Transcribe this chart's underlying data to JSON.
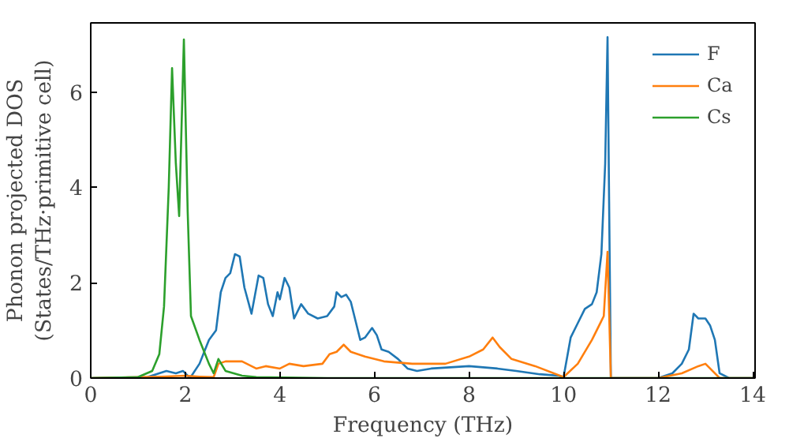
{
  "chart_data": {
    "type": "line",
    "xlabel": "Frequency (THz)",
    "ylabel": "Phonon projected DOS\n(States/THz·primitive cell)",
    "xlim": [
      0,
      14.05
    ],
    "ylim": [
      0,
      7.45
    ],
    "xticks": [
      0,
      2,
      4,
      6,
      8,
      10,
      12,
      14
    ],
    "yticks": [
      0,
      2,
      4,
      6
    ],
    "grid": false,
    "legend": "top right",
    "series": [
      {
        "name": "F",
        "color": "#1f77b4",
        "x": [
          0,
          1.2,
          1.6,
          1.8,
          1.95,
          2.05,
          2.1,
          2.3,
          2.5,
          2.65,
          2.75,
          2.85,
          2.95,
          3.05,
          3.15,
          3.25,
          3.4,
          3.55,
          3.65,
          3.75,
          3.85,
          3.95,
          4.0,
          4.1,
          4.2,
          4.3,
          4.45,
          4.6,
          4.8,
          5.0,
          5.15,
          5.2,
          5.3,
          5.4,
          5.5,
          5.6,
          5.7,
          5.8,
          5.95,
          6.05,
          6.15,
          6.3,
          6.5,
          6.7,
          6.9,
          7.2,
          8.0,
          8.6,
          9.0,
          9.5,
          9.9,
          10.0,
          10.15,
          10.3,
          10.45,
          10.6,
          10.7,
          10.8,
          10.88,
          10.93,
          10.97,
          11.0,
          12.0,
          12.3,
          12.5,
          12.65,
          12.75,
          12.85,
          13.0,
          13.1,
          13.2,
          13.3,
          13.5,
          14.0
        ],
        "values": [
          0,
          0.02,
          0.15,
          0.1,
          0.15,
          0.05,
          0,
          0.3,
          0.8,
          1.0,
          1.8,
          2.1,
          2.2,
          2.6,
          2.55,
          1.9,
          1.35,
          2.15,
          2.1,
          1.55,
          1.3,
          1.8,
          1.65,
          2.1,
          1.9,
          1.25,
          1.55,
          1.35,
          1.25,
          1.3,
          1.5,
          1.8,
          1.7,
          1.75,
          1.6,
          1.2,
          0.8,
          0.85,
          1.05,
          0.9,
          0.6,
          0.55,
          0.4,
          0.2,
          0.15,
          0.2,
          0.25,
          0.2,
          0.15,
          0.08,
          0.05,
          0.02,
          0.85,
          1.15,
          1.45,
          1.55,
          1.8,
          2.6,
          4.5,
          7.15,
          3.0,
          0,
          0,
          0.1,
          0.3,
          0.6,
          1.35,
          1.25,
          1.25,
          1.1,
          0.8,
          0.1,
          0,
          0
        ]
      },
      {
        "name": "Ca",
        "color": "#ff7f0e",
        "x": [
          0,
          1.5,
          2.0,
          2.3,
          2.6,
          2.7,
          2.85,
          3.2,
          3.4,
          3.5,
          3.7,
          4.0,
          4.2,
          4.5,
          4.9,
          5.05,
          5.2,
          5.35,
          5.5,
          5.8,
          6.0,
          6.2,
          6.8,
          7.5,
          8.0,
          8.3,
          8.5,
          8.65,
          8.9,
          9.4,
          10.0,
          10.3,
          10.6,
          10.85,
          10.93,
          11.0,
          12.0,
          12.5,
          12.85,
          13.0,
          13.3,
          14.0
        ],
        "values": [
          0,
          0.03,
          0.05,
          0.03,
          0.02,
          0.3,
          0.35,
          0.35,
          0.25,
          0.2,
          0.25,
          0.2,
          0.3,
          0.25,
          0.3,
          0.5,
          0.55,
          0.7,
          0.55,
          0.45,
          0.4,
          0.35,
          0.3,
          0.3,
          0.45,
          0.6,
          0.85,
          0.65,
          0.4,
          0.25,
          0.02,
          0.3,
          0.8,
          1.3,
          2.65,
          0,
          0,
          0.1,
          0.25,
          0.3,
          0,
          0
        ]
      },
      {
        "name": "Cs",
        "color": "#2ca02c",
        "x": [
          0,
          1.0,
          1.3,
          1.45,
          1.55,
          1.65,
          1.72,
          1.8,
          1.87,
          1.97,
          2.05,
          2.12,
          2.3,
          2.5,
          2.6,
          2.7,
          2.85,
          3.2,
          3.5,
          5.0,
          14.0
        ],
        "values": [
          0,
          0.02,
          0.15,
          0.5,
          1.5,
          4.0,
          6.5,
          4.5,
          3.4,
          7.1,
          3.5,
          1.3,
          0.8,
          0.3,
          0.1,
          0.4,
          0.15,
          0.05,
          0.02,
          0,
          0
        ]
      }
    ]
  }
}
